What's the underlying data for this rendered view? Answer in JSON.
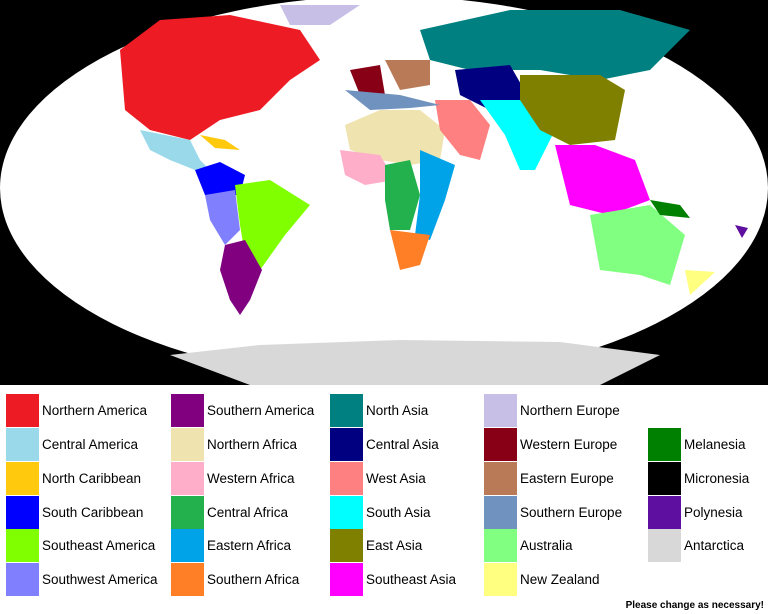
{
  "legend": {
    "items": [
      {
        "label": "Northern America",
        "color": "#ed1c24"
      },
      {
        "label": "Central America",
        "color": "#99d9ea"
      },
      {
        "label": "North Caribbean",
        "color": "#ffc90e"
      },
      {
        "label": "South Caribbean",
        "color": "#0000ff"
      },
      {
        "label": "Southeast America",
        "color": "#80ff00"
      },
      {
        "label": "Southwest America",
        "color": "#8080ff"
      },
      {
        "label": "Southern America",
        "color": "#800080"
      },
      {
        "label": "Northern Africa",
        "color": "#efe4b0"
      },
      {
        "label": "Western Africa",
        "color": "#ffaec9"
      },
      {
        "label": "Central Africa",
        "color": "#22b14c"
      },
      {
        "label": "Eastern Africa",
        "color": "#00a2e8"
      },
      {
        "label": "Southern Africa",
        "color": "#ff7f27"
      },
      {
        "label": "North Asia",
        "color": "#008080"
      },
      {
        "label": "Central Asia",
        "color": "#000080"
      },
      {
        "label": "West Asia",
        "color": "#ff8080"
      },
      {
        "label": "South Asia",
        "color": "#00ffff"
      },
      {
        "label": "East Asia",
        "color": "#808000"
      },
      {
        "label": "Southeast Asia",
        "color": "#ff00ff"
      },
      {
        "label": "Northern Europe",
        "color": "#c8bfe7"
      },
      {
        "label": "Western Europe",
        "color": "#880015"
      },
      {
        "label": "Eastern Europe",
        "color": "#b97a57"
      },
      {
        "label": "Southern Europe",
        "color": "#7092be"
      },
      {
        "label": "Australia",
        "color": "#80ff80"
      },
      {
        "label": "New Zealand",
        "color": "#ffff80"
      },
      {
        "label": "Melanesia",
        "color": "#008000"
      },
      {
        "label": "Micronesia",
        "color": "#000000"
      },
      {
        "label": "Polynesia",
        "color": "#5f0f9f"
      },
      {
        "label": "Antarctica",
        "color": "#d8d8d8"
      }
    ],
    "note": "Please change as necessary!"
  }
}
